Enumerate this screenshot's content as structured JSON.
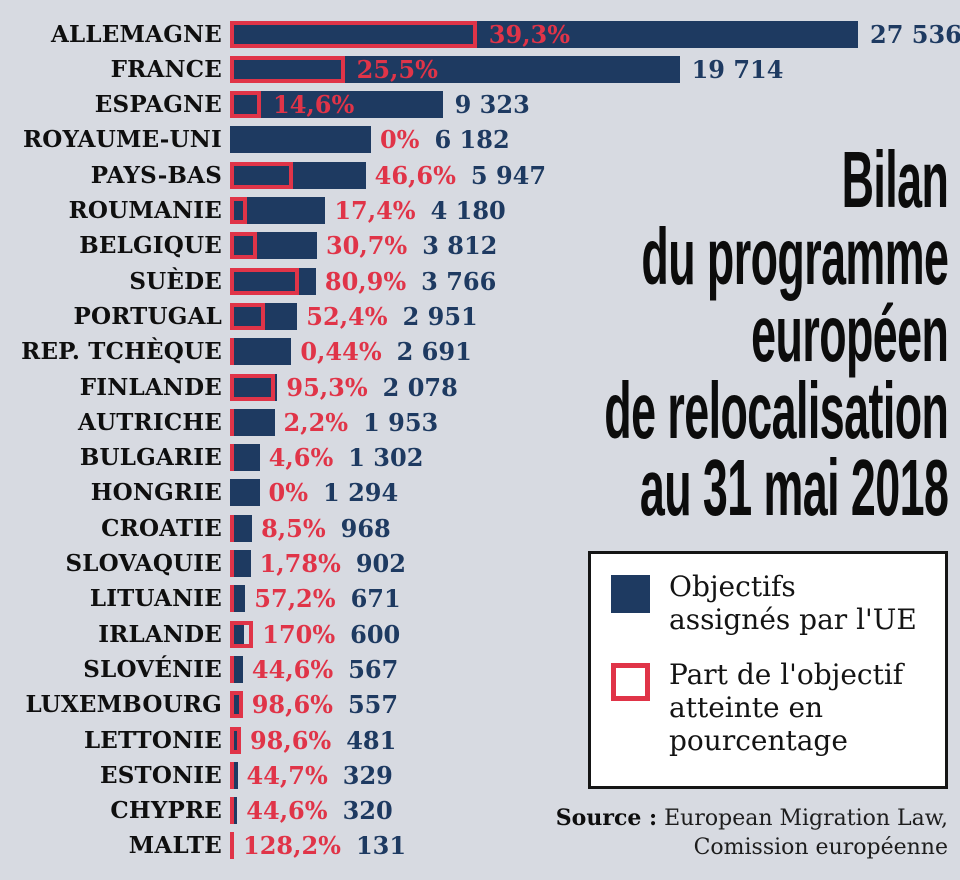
{
  "colors": {
    "background": "#d7dae1",
    "navy": "#1e3a61",
    "red": "#e03448",
    "black": "#0f0f0f",
    "legend_background": "#ffffff",
    "legend_border": "#151515"
  },
  "title": {
    "lines": [
      "Bilan",
      "du programme",
      "européen",
      "de relocalisation",
      "au 31 mai 2018"
    ]
  },
  "legend": {
    "items": [
      {
        "swatch": "navy-filled-square",
        "label": "Objectifs assignés par l'UE",
        "lines": [
          "Objectifs",
          "assignés par l'UE"
        ]
      },
      {
        "swatch": "red-outline-square",
        "label": "Part de l'objectif atteinte en pourcentage",
        "lines": [
          "Part de l'objectif",
          "atteinte en",
          "pourcentage"
        ]
      }
    ]
  },
  "source": {
    "label": "Source :",
    "text": " European Migration Law,",
    "text2": "Comission européenne"
  },
  "chart_data": {
    "type": "bar",
    "orientation": "horizontal",
    "title": "Bilan du programme européen de relocalisation au 31 mai 2018",
    "xlim": [
      0,
      27536
    ],
    "grid": false,
    "legend_position": "right",
    "series_names": [
      "Objectifs assignés par l'UE",
      "Part de l'objectif atteinte en pourcentage"
    ],
    "bars": [
      {
        "country": "ALLEMAGNE",
        "objective": 27536,
        "objective_label": "27 536",
        "achieved_pct": 39.3,
        "achieved_pct_label": "39,3%"
      },
      {
        "country": "FRANCE",
        "objective": 19714,
        "objective_label": "19 714",
        "achieved_pct": 25.5,
        "achieved_pct_label": "25,5%"
      },
      {
        "country": "ESPAGNE",
        "objective": 9323,
        "objective_label": "9 323",
        "achieved_pct": 14.6,
        "achieved_pct_label": "14,6%"
      },
      {
        "country": "ROYAUME-UNI",
        "objective": 6182,
        "objective_label": "6 182",
        "achieved_pct": 0,
        "achieved_pct_label": "0%"
      },
      {
        "country": "PAYS-BAS",
        "objective": 5947,
        "objective_label": "5 947",
        "achieved_pct": 46.6,
        "achieved_pct_label": "46,6%"
      },
      {
        "country": "ROUMANIE",
        "objective": 4180,
        "objective_label": "4 180",
        "achieved_pct": 17.4,
        "achieved_pct_label": "17,4%"
      },
      {
        "country": "BELGIQUE",
        "objective": 3812,
        "objective_label": "3 812",
        "achieved_pct": 30.7,
        "achieved_pct_label": "30,7%"
      },
      {
        "country": "SUÈDE",
        "objective": 3766,
        "objective_label": "3 766",
        "achieved_pct": 80.9,
        "achieved_pct_label": "80,9%"
      },
      {
        "country": "PORTUGAL",
        "objective": 2951,
        "objective_label": "2 951",
        "achieved_pct": 52.4,
        "achieved_pct_label": "52,4%"
      },
      {
        "country": "REP. TCHÈQUE",
        "objective": 2691,
        "objective_label": "2 691",
        "achieved_pct": 0.44,
        "achieved_pct_label": "0,44%"
      },
      {
        "country": "FINLANDE",
        "objective": 2078,
        "objective_label": "2 078",
        "achieved_pct": 95.3,
        "achieved_pct_label": "95,3%"
      },
      {
        "country": "AUTRICHE",
        "objective": 1953,
        "objective_label": "1 953",
        "achieved_pct": 2.2,
        "achieved_pct_label": "2,2%"
      },
      {
        "country": "BULGARIE",
        "objective": 1302,
        "objective_label": "1 302",
        "achieved_pct": 4.6,
        "achieved_pct_label": "4,6%"
      },
      {
        "country": "HONGRIE",
        "objective": 1294,
        "objective_label": "1 294",
        "achieved_pct": 0,
        "achieved_pct_label": "0%"
      },
      {
        "country": "CROATIE",
        "objective": 968,
        "objective_label": "968",
        "achieved_pct": 8.5,
        "achieved_pct_label": "8,5%"
      },
      {
        "country": "SLOVAQUIE",
        "objective": 902,
        "objective_label": "902",
        "achieved_pct": 1.78,
        "achieved_pct_label": "1,78%"
      },
      {
        "country": "LITUANIE",
        "objective": 671,
        "objective_label": "671",
        "achieved_pct": 57.2,
        "achieved_pct_label": "57,2%"
      },
      {
        "country": "IRLANDE",
        "objective": 600,
        "objective_label": "600",
        "achieved_pct": 170,
        "achieved_pct_label": "170%"
      },
      {
        "country": "SLOVÉNIE",
        "objective": 567,
        "objective_label": "567",
        "achieved_pct": 44.6,
        "achieved_pct_label": "44,6%"
      },
      {
        "country": "LUXEMBOURG",
        "objective": 557,
        "objective_label": "557",
        "achieved_pct": 98.6,
        "achieved_pct_label": "98,6%"
      },
      {
        "country": "LETTONIE",
        "objective": 481,
        "objective_label": "481",
        "achieved_pct": 98.6,
        "achieved_pct_label": "98,6%"
      },
      {
        "country": "ESTONIE",
        "objective": 329,
        "objective_label": "329",
        "achieved_pct": 44.7,
        "achieved_pct_label": "44,7%"
      },
      {
        "country": "CHYPRE",
        "objective": 320,
        "objective_label": "320",
        "achieved_pct": 44.6,
        "achieved_pct_label": "44,6%"
      },
      {
        "country": "MALTE",
        "objective": 131,
        "objective_label": "131",
        "achieved_pct": 128.2,
        "achieved_pct_label": "128,2%"
      }
    ]
  }
}
